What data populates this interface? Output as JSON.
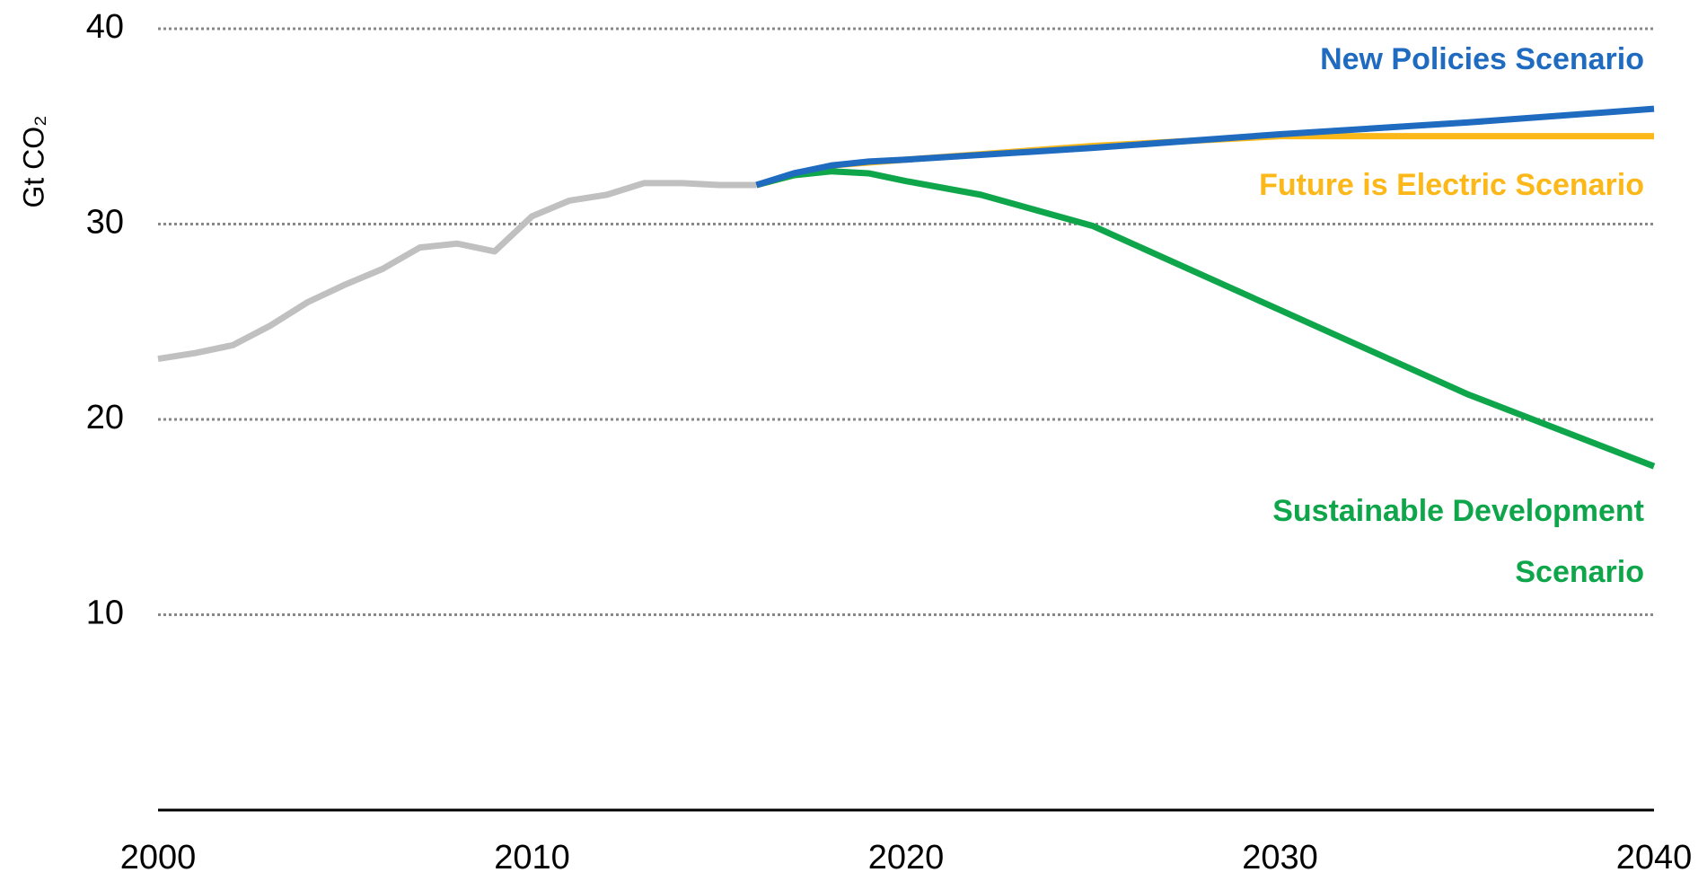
{
  "chart_data": {
    "type": "line",
    "y_label": "Gt CO₂",
    "xlim": [
      2000,
      2040
    ],
    "xticks": [
      2000,
      2010,
      2020,
      2030,
      2040
    ],
    "ylim": [
      0,
      40
    ],
    "yticks": [
      10,
      20,
      30,
      40
    ],
    "grid": true,
    "series": [
      {
        "color": "#c0c0c0",
        "x": [
          2000,
          2001,
          2002,
          2003,
          2004,
          2005,
          2006,
          2007,
          2008,
          2009,
          2010,
          2011,
          2012,
          2013,
          2014,
          2015,
          2016
        ],
        "values": [
          23.1,
          23.4,
          23.8,
          24.8,
          26.0,
          26.9,
          27.7,
          28.8,
          29.0,
          28.6,
          30.4,
          31.2,
          31.5,
          32.1,
          32.1,
          32.0,
          32.0
        ]
      },
      {
        "name": "Future is Electric Scenario",
        "color": "#fbb818",
        "x": [
          2016,
          2018,
          2020,
          2025,
          2030,
          2035,
          2040
        ],
        "values": [
          32.0,
          33.0,
          33.3,
          34.0,
          34.5,
          34.5,
          34.5
        ]
      },
      {
        "name": "Sustainable Development Scenario",
        "color": "#0fa64b",
        "x": [
          2016,
          2017,
          2018,
          2019,
          2020,
          2022,
          2025,
          2030,
          2035,
          2040
        ],
        "values": [
          32.0,
          32.5,
          32.7,
          32.6,
          32.2,
          31.5,
          29.9,
          25.6,
          21.3,
          17.6
        ]
      },
      {
        "name": "New Policies Scenario",
        "color": "#1f6bc0",
        "x": [
          2016,
          2017,
          2018,
          2019,
          2020,
          2025,
          2030,
          2035,
          2040
        ],
        "values": [
          32.0,
          32.6,
          33.0,
          33.2,
          33.3,
          33.9,
          34.6,
          35.2,
          35.9
        ]
      }
    ]
  }
}
